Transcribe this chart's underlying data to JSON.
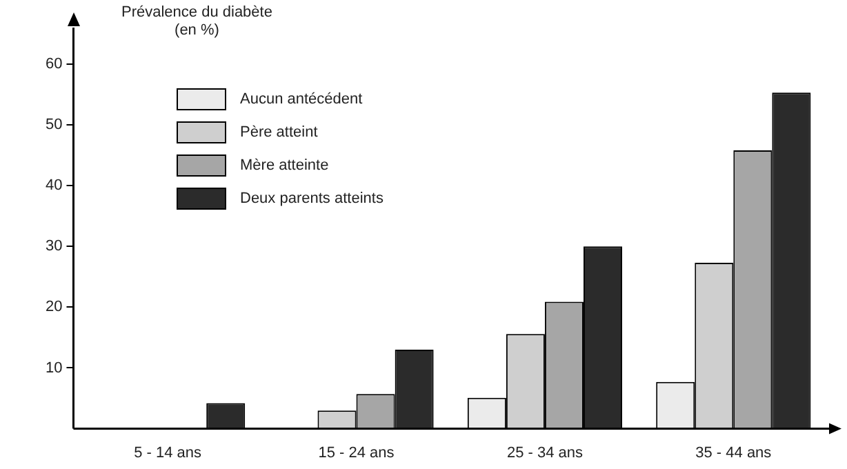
{
  "chart_data": {
    "type": "bar",
    "ylabel": "Prévalence du diabète\n(en %)",
    "categories": [
      "5 - 14 ans",
      "15 - 24 ans",
      "25 - 34 ans",
      "35 - 44 ans"
    ],
    "series": [
      {
        "name": "Aucun antécédent",
        "color": "#ebebeb",
        "values": [
          0,
          0,
          5.1,
          7.7
        ]
      },
      {
        "name": "Père atteint",
        "color": "#cfcfcf",
        "values": [
          0,
          3,
          15.6,
          27.3
        ]
      },
      {
        "name": "Mère atteinte",
        "color": "#a6a6a6",
        "values": [
          0,
          5.7,
          20.9,
          45.8
        ]
      },
      {
        "name": "Deux parents atteints",
        "color": "#2b2b2b",
        "values": [
          4.2,
          13,
          30,
          55.3
        ]
      }
    ],
    "ylim": [
      0,
      66
    ],
    "yticks": [
      10,
      20,
      30,
      40,
      50,
      60
    ],
    "grid": false,
    "legend": "top left"
  }
}
